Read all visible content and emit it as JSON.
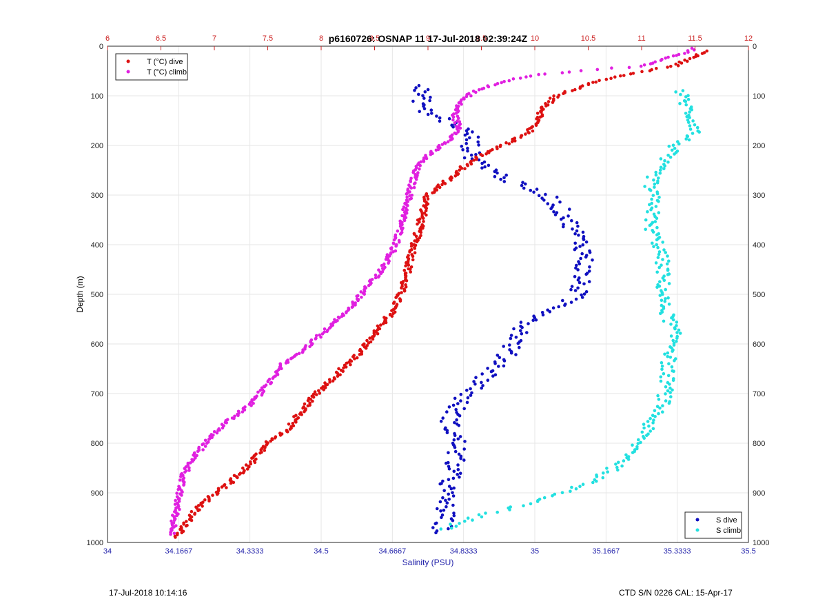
{
  "footer": {
    "left": "17-Jul-2018 10:14:16",
    "right": "CTD S/N 0226  CAL: 15-Apr-17"
  },
  "chart_data": {
    "type": "scatter",
    "title": "p6160726: OSNAP 11  17-Jul-2018 02:39:24Z",
    "xlabel": "Salinity (PSU)",
    "ylabel": "Depth (m)",
    "grid": true,
    "legend_temperature": "top-left",
    "legend_salinity": "bottom-right",
    "y_axis": {
      "lim": [
        0,
        1000
      ],
      "reversed": true,
      "ticks": [
        "0",
        "100",
        "200",
        "300",
        "400",
        "500",
        "600",
        "700",
        "800",
        "900",
        "1000"
      ]
    },
    "x_axis_bottom": {
      "label": "Salinity (PSU)",
      "lim": [
        34,
        35.5
      ],
      "ticks": [
        "34",
        "34.1667",
        "34.3333",
        "34.5",
        "34.6667",
        "34.8333",
        "35",
        "35.1667",
        "35.3333",
        "35.5"
      ],
      "color": "#2222aa"
    },
    "x_axis_top": {
      "label": "",
      "lim": [
        6,
        12
      ],
      "ticks": [
        "6",
        "6.5",
        "7",
        "7.5",
        "8",
        "8.5",
        "9",
        "9.5",
        "10",
        "10.5",
        "11",
        "11.5",
        "12"
      ],
      "color": "#cc2222"
    },
    "series": [
      {
        "name": "T (°C) dive",
        "axis": "top",
        "color": "#dd1111",
        "profile": [
          [
            11.6,
            10
          ],
          [
            11.3,
            40
          ],
          [
            10.9,
            55
          ],
          [
            10.6,
            70
          ],
          [
            10.4,
            85
          ],
          [
            10.2,
            100
          ],
          [
            10.1,
            120
          ],
          [
            10.05,
            140
          ],
          [
            10.0,
            160
          ],
          [
            9.9,
            180
          ],
          [
            9.7,
            200
          ],
          [
            9.5,
            220
          ],
          [
            9.35,
            240
          ],
          [
            9.25,
            260
          ],
          [
            9.12,
            280
          ],
          [
            9.0,
            300
          ],
          [
            8.95,
            340
          ],
          [
            8.9,
            380
          ],
          [
            8.85,
            420
          ],
          [
            8.8,
            460
          ],
          [
            8.74,
            500
          ],
          [
            8.65,
            540
          ],
          [
            8.5,
            580
          ],
          [
            8.35,
            620
          ],
          [
            8.15,
            660
          ],
          [
            7.95,
            700
          ],
          [
            7.8,
            740
          ],
          [
            7.65,
            780
          ],
          [
            7.5,
            800
          ],
          [
            7.35,
            840
          ],
          [
            7.15,
            880
          ],
          [
            6.95,
            910
          ],
          [
            6.8,
            940
          ],
          [
            6.72,
            970
          ],
          [
            6.65,
            990
          ]
        ]
      },
      {
        "name": "T (°C) climb",
        "axis": "top",
        "color": "#e020e0",
        "profile": [
          [
            11.5,
            5
          ],
          [
            11.0,
            40
          ],
          [
            10.4,
            50
          ],
          [
            10.0,
            58
          ],
          [
            9.65,
            75
          ],
          [
            9.45,
            90
          ],
          [
            9.3,
            110
          ],
          [
            9.25,
            140
          ],
          [
            9.3,
            170
          ],
          [
            9.2,
            190
          ],
          [
            9.05,
            210
          ],
          [
            8.9,
            240
          ],
          [
            8.85,
            280
          ],
          [
            8.8,
            320
          ],
          [
            8.75,
            360
          ],
          [
            8.7,
            400
          ],
          [
            8.6,
            440
          ],
          [
            8.45,
            480
          ],
          [
            8.3,
            520
          ],
          [
            8.1,
            560
          ],
          [
            7.9,
            600
          ],
          [
            7.65,
            640
          ],
          [
            7.5,
            680
          ],
          [
            7.35,
            720
          ],
          [
            7.1,
            760
          ],
          [
            6.95,
            790
          ],
          [
            6.8,
            830
          ],
          [
            6.7,
            870
          ],
          [
            6.67,
            900
          ],
          [
            6.65,
            930
          ],
          [
            6.62,
            960
          ],
          [
            6.62,
            985
          ]
        ]
      },
      {
        "name": "S dive",
        "axis": "bottom",
        "color": "#1010c0",
        "profile": [
          [
            34.73,
            80
          ],
          [
            34.74,
            130
          ],
          [
            34.82,
            160
          ],
          [
            34.85,
            180
          ],
          [
            34.85,
            220
          ],
          [
            34.9,
            250
          ],
          [
            34.96,
            280
          ],
          [
            35.03,
            300
          ],
          [
            35.07,
            340
          ],
          [
            35.1,
            380
          ],
          [
            35.12,
            420
          ],
          [
            35.11,
            460
          ],
          [
            35.1,
            500
          ],
          [
            35.05,
            530
          ],
          [
            34.98,
            560
          ],
          [
            34.95,
            600
          ],
          [
            34.92,
            640
          ],
          [
            34.87,
            680
          ],
          [
            34.82,
            720
          ],
          [
            34.8,
            760
          ],
          [
            34.82,
            800
          ],
          [
            34.81,
            850
          ],
          [
            34.79,
            900
          ],
          [
            34.79,
            950
          ],
          [
            34.78,
            980
          ]
        ]
      },
      {
        "name": "S climb",
        "axis": "bottom",
        "color": "#22e0e0",
        "profile": [
          [
            35.34,
            90
          ],
          [
            35.36,
            130
          ],
          [
            35.38,
            170
          ],
          [
            35.33,
            200
          ],
          [
            35.29,
            240
          ],
          [
            35.27,
            280
          ],
          [
            35.28,
            320
          ],
          [
            35.27,
            360
          ],
          [
            35.29,
            400
          ],
          [
            35.3,
            440
          ],
          [
            35.3,
            480
          ],
          [
            35.3,
            520
          ],
          [
            35.32,
            560
          ],
          [
            35.33,
            600
          ],
          [
            35.31,
            640
          ],
          [
            35.31,
            680
          ],
          [
            35.3,
            720
          ],
          [
            35.27,
            760
          ],
          [
            35.24,
            800
          ],
          [
            35.22,
            830
          ],
          [
            35.17,
            860
          ],
          [
            35.1,
            890
          ],
          [
            35.0,
            920
          ],
          [
            34.9,
            940
          ],
          [
            34.82,
            960
          ],
          [
            34.78,
            975
          ]
        ]
      }
    ]
  }
}
